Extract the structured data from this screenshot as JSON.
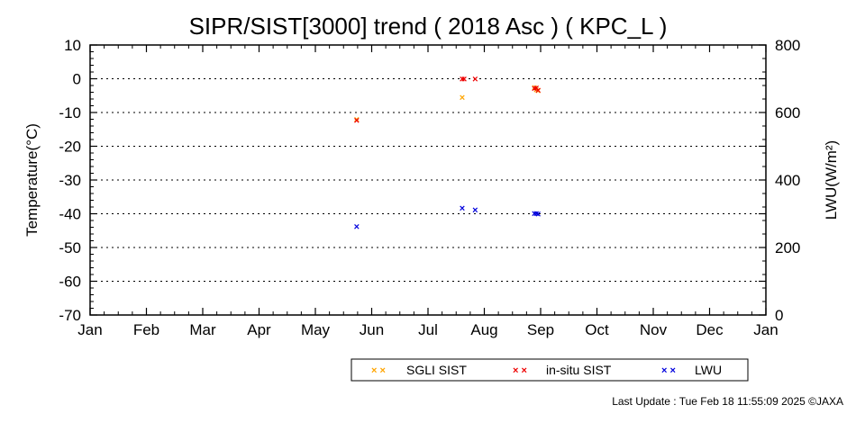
{
  "chart_data": {
    "type": "scatter",
    "title": "SIPR/SIST[3000] trend ( 2018 Asc ) ( KPC_L )",
    "xlabel": "",
    "ylabel": "Temperature(°C)",
    "y2label": "LWU(W/m²)",
    "x_ticks": [
      "Jan",
      "Feb",
      "Mar",
      "Apr",
      "May",
      "Jun",
      "Jul",
      "Aug",
      "Sep",
      "Oct",
      "Nov",
      "Dec",
      "Jan"
    ],
    "xlim": [
      "2018-01-01",
      "2019-01-01"
    ],
    "ylim": [
      -70,
      10
    ],
    "y_ticks": [
      10,
      0,
      -10,
      -20,
      -30,
      -40,
      -50,
      -60,
      -70
    ],
    "y2lim": [
      0,
      800
    ],
    "y2_ticks": [
      800,
      600,
      400,
      200,
      0
    ],
    "grid": "horizontal dotted",
    "legend_position": "bottom",
    "series": [
      {
        "name": "SGLI SIST",
        "color": "#ffa500",
        "axis": "left",
        "marker": "x",
        "points": [
          {
            "x": "2018-05-25",
            "y": -12
          },
          {
            "x": "2018-07-21",
            "y": -5.5
          },
          {
            "x": "2018-08-29",
            "y": -2.5
          },
          {
            "x": "2018-08-30",
            "y": -3.2
          },
          {
            "x": "2018-08-31",
            "y": -3.5
          }
        ]
      },
      {
        "name": "in-situ SIST",
        "color": "#ee0000",
        "axis": "left",
        "marker": "x",
        "points": [
          {
            "x": "2018-05-25",
            "y": -12.3
          },
          {
            "x": "2018-07-21",
            "y": 0
          },
          {
            "x": "2018-07-22",
            "y": 0
          },
          {
            "x": "2018-07-28",
            "y": 0
          },
          {
            "x": "2018-08-29",
            "y": -2.8
          },
          {
            "x": "2018-08-30",
            "y": -2.6
          },
          {
            "x": "2018-08-31",
            "y": -3.3
          }
        ]
      },
      {
        "name": "LWU",
        "color": "#0000dd",
        "axis": "right",
        "marker": "x",
        "points": [
          {
            "x": "2018-05-25",
            "y": 263
          },
          {
            "x": "2018-07-21",
            "y": 317
          },
          {
            "x": "2018-07-28",
            "y": 312
          },
          {
            "x": "2018-08-29",
            "y": 301
          },
          {
            "x": "2018-08-30",
            "y": 302
          },
          {
            "x": "2018-08-31",
            "y": 300
          }
        ]
      }
    ]
  },
  "footer": {
    "text": "Last Update : Tue Feb 18 11:55:09 2025  ©JAXA"
  }
}
